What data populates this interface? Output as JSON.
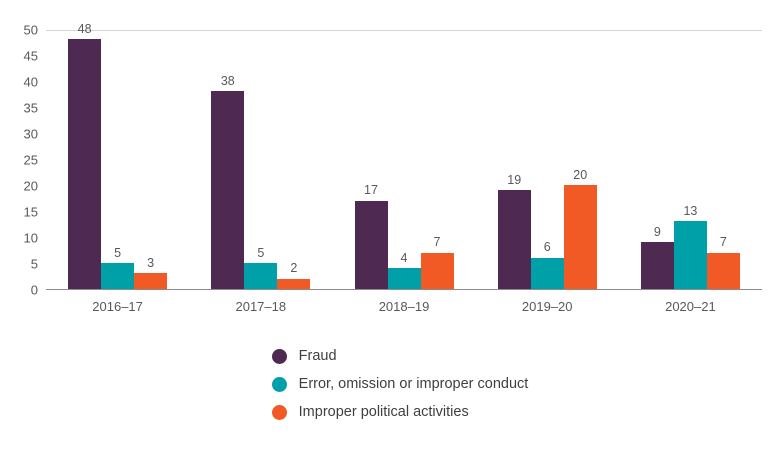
{
  "chart_data": {
    "type": "bar",
    "title": "",
    "categories": [
      "2016–17",
      "2017–18",
      "2018–19",
      "2019–20",
      "2020–21"
    ],
    "series": [
      {
        "name": "Fraud",
        "color": "#4e2a52",
        "values": [
          48,
          38,
          17,
          19,
          9
        ]
      },
      {
        "name": "Error, omission or improper conduct",
        "color": "#00a0a8",
        "values": [
          5,
          5,
          4,
          6,
          13
        ]
      },
      {
        "name": "Improper political activities",
        "color": "#f15a24",
        "values": [
          3,
          2,
          7,
          20,
          7
        ]
      }
    ],
    "xlabel": "",
    "ylabel": "",
    "ylim": [
      0,
      50
    ],
    "ytick_step": 5,
    "grid": false,
    "data_labels": true,
    "legend_position": "bottom"
  }
}
